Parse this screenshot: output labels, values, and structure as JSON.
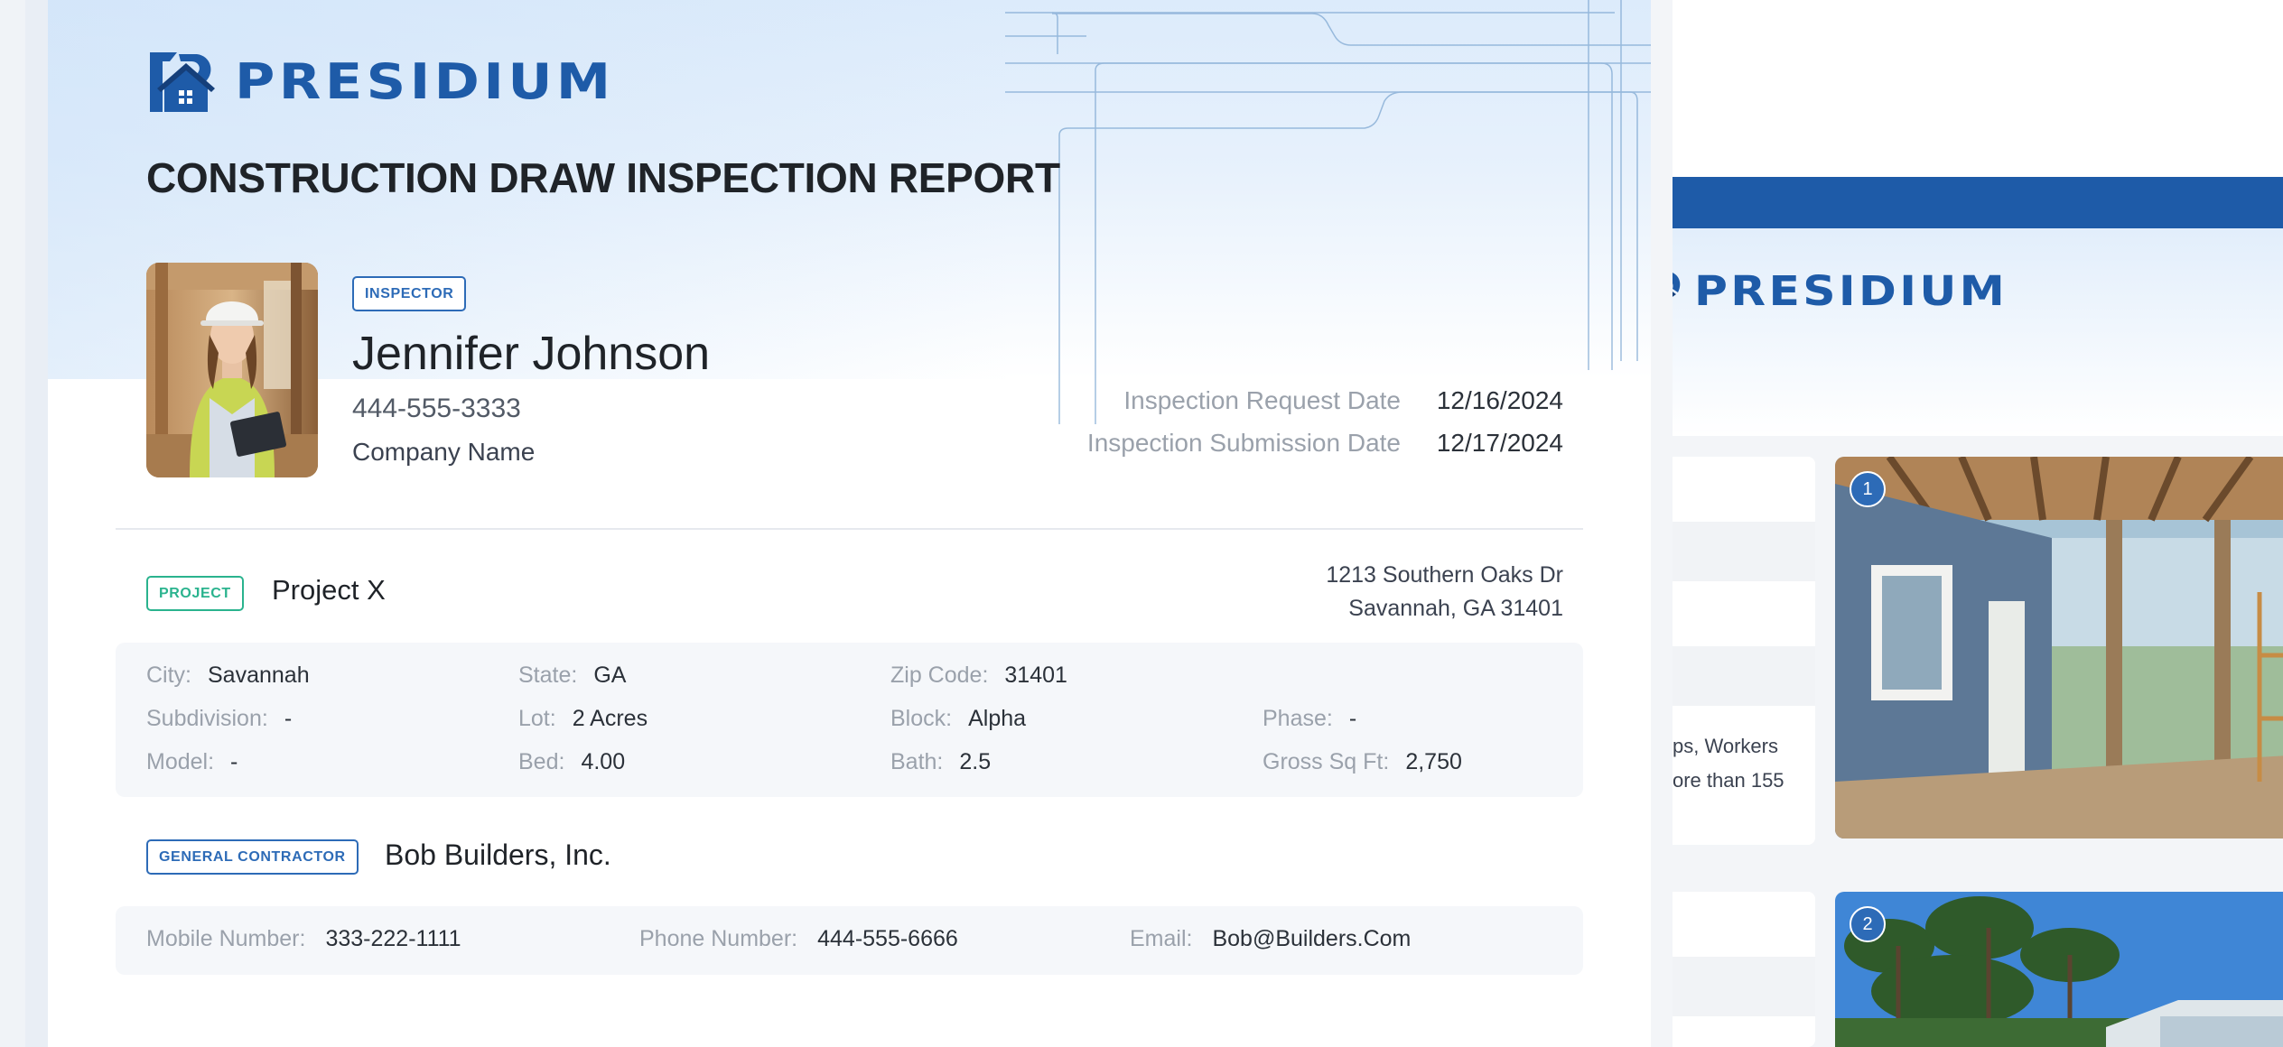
{
  "brand": {
    "name": "PRESIDIUM",
    "color": "#1e5ba8"
  },
  "report": {
    "title": "CONSTRUCTION DRAW INSPECTION REPORT"
  },
  "inspector": {
    "badge": "INSPECTOR",
    "name": "Jennifer Johnson",
    "phone": "444-555-3333",
    "company": "Company Name"
  },
  "dates": {
    "request_label": "Inspection Request Date",
    "request_value": "12/16/2024",
    "submission_label": "Inspection Submission Date",
    "submission_value": "12/17/2024"
  },
  "project": {
    "badge": "PROJECT",
    "name": "Project X",
    "address_line1": "1213 Southern Oaks Dr",
    "address_line2": "Savannah, GA 31401",
    "fields": {
      "city": {
        "label": "City:",
        "value": "Savannah"
      },
      "state": {
        "label": "State:",
        "value": "GA"
      },
      "zip": {
        "label": "Zip Code:",
        "value": "31401"
      },
      "subdivision": {
        "label": "Subdivision:",
        "value": "-"
      },
      "lot": {
        "label": "Lot:",
        "value": "2 Acres"
      },
      "block": {
        "label": "Block:",
        "value": "Alpha"
      },
      "phase": {
        "label": "Phase:",
        "value": "-"
      },
      "model": {
        "label": "Model:",
        "value": "-"
      },
      "bed": {
        "label": "Bed:",
        "value": "4.00"
      },
      "bath": {
        "label": "Bath:",
        "value": "2.5"
      },
      "gross_sq_ft": {
        "label": "Gross Sq Ft:",
        "value": "2,750"
      }
    }
  },
  "contractor": {
    "badge": "GENERAL CONTRACTOR",
    "name": "Bob Builders, Inc.",
    "mobile": {
      "label": "Mobile Number:",
      "value": "333-222-1111"
    },
    "phone": {
      "label": "Phone Number:",
      "value": "444-555-6666"
    },
    "email": {
      "label": "Email:",
      "value": "Bob@Builders.Com"
    }
  },
  "preview": {
    "brand": "PRESIDIUM",
    "snippet_line1": "ps, Workers",
    "snippet_line2": "ore than 155",
    "photos": [
      {
        "number": "1"
      },
      {
        "number": "2"
      }
    ]
  }
}
